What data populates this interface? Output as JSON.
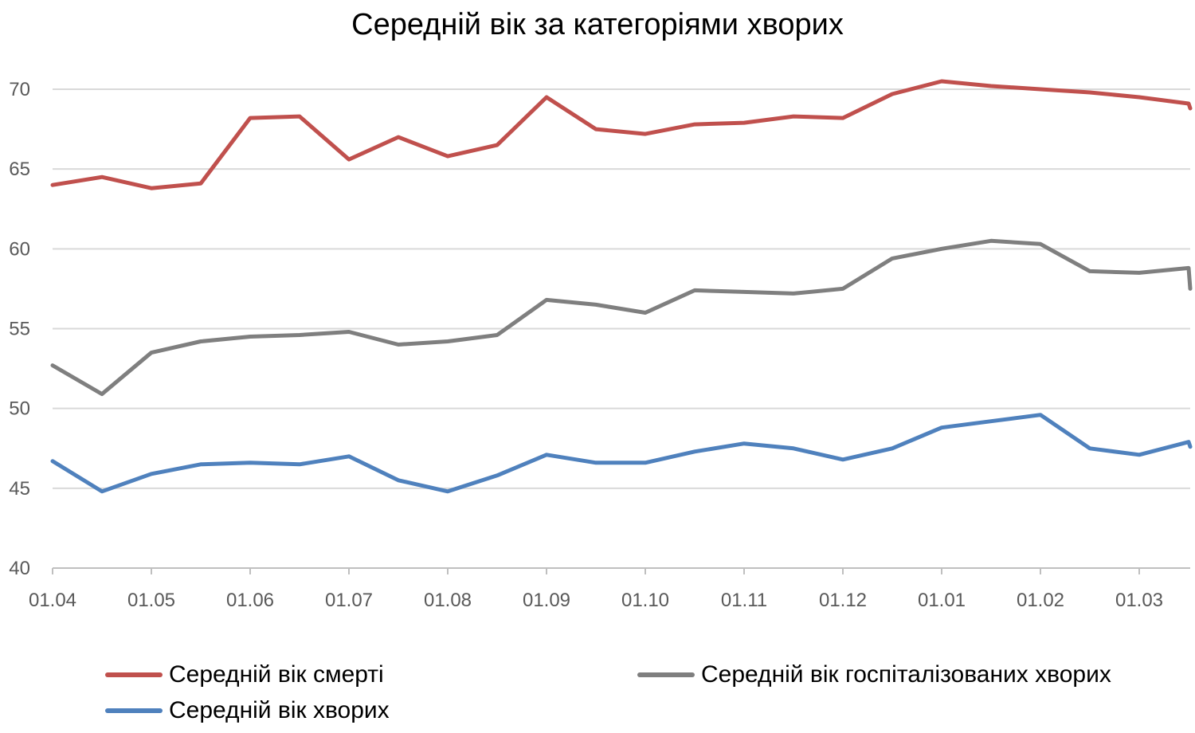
{
  "chart_data": {
    "type": "line",
    "title": "Середній вік за категоріями хворих",
    "xlabel": "",
    "ylabel": "",
    "ylim": [
      40,
      70
    ],
    "yticks": [
      40,
      45,
      50,
      55,
      60,
      65,
      70
    ],
    "x_tick_labels": [
      "01.04",
      "01.05",
      "01.06",
      "01.07",
      "01.08",
      "01.09",
      "01.10",
      "01.11",
      "01.12",
      "01.01",
      "01.02",
      "01.03"
    ],
    "grid": true,
    "legend_position": "bottom",
    "x": [
      "01.04",
      "15.04",
      "01.05",
      "15.05",
      "01.06",
      "15.06",
      "01.07",
      "15.07",
      "01.08",
      "15.08",
      "01.09",
      "15.09",
      "01.10",
      "15.10",
      "01.11",
      "15.11",
      "01.12",
      "15.12",
      "01.01",
      "15.01",
      "01.02",
      "15.02",
      "01.03",
      "15.03",
      "24.03"
    ],
    "series": [
      {
        "name": "Середній вік смерті",
        "color": "#c0504d",
        "values": [
          64.0,
          64.5,
          63.8,
          64.1,
          68.2,
          68.3,
          65.6,
          67.0,
          65.8,
          66.5,
          69.5,
          67.5,
          67.2,
          67.8,
          67.9,
          68.3,
          68.2,
          69.7,
          70.5,
          70.2,
          70.0,
          69.8,
          69.5,
          69.1,
          68.8
        ]
      },
      {
        "name": "Середній вік госпіталізованих хворих",
        "color": "#7f7f7f",
        "values": [
          52.7,
          50.9,
          53.5,
          54.2,
          54.5,
          54.6,
          54.8,
          54.0,
          54.2,
          54.6,
          56.8,
          56.5,
          56.0,
          57.4,
          57.3,
          57.2,
          57.5,
          59.4,
          60.0,
          60.5,
          60.3,
          58.6,
          58.5,
          58.8,
          57.5
        ]
      },
      {
        "name": "Середній вік хворих",
        "color": "#4f81bd",
        "values": [
          46.7,
          44.8,
          45.9,
          46.5,
          46.6,
          46.5,
          47.0,
          45.5,
          44.8,
          45.8,
          47.1,
          46.6,
          46.6,
          47.3,
          47.8,
          47.5,
          46.8,
          47.5,
          48.8,
          49.2,
          49.6,
          47.5,
          47.1,
          47.9,
          47.6
        ]
      }
    ]
  }
}
